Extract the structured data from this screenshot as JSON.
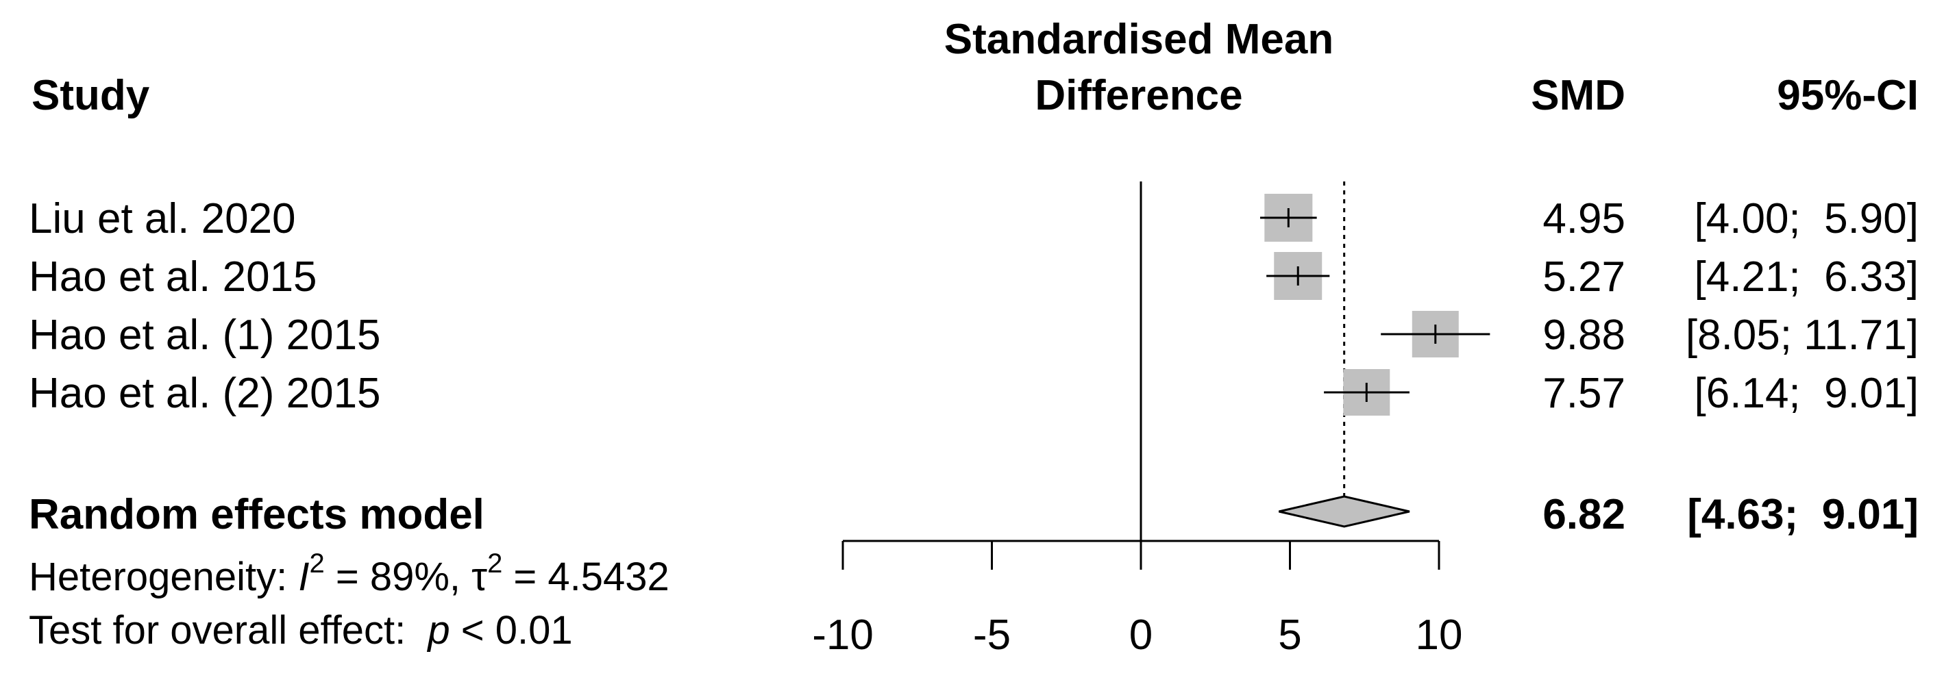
{
  "chart_data": {
    "type": "forest",
    "headers": {
      "study": "Study",
      "effect_line1": "Standardised Mean",
      "effect_line2": "Difference",
      "smd": "SMD",
      "ci": "95%-CI"
    },
    "studies": [
      {
        "label": "Liu et al. 2020",
        "smd": 4.95,
        "lower": 4.0,
        "upper": 5.9,
        "smd_text": "4.95",
        "ci_text": "[4.00;  5.90]"
      },
      {
        "label": "Hao et al. 2015",
        "smd": 5.27,
        "lower": 4.21,
        "upper": 6.33,
        "smd_text": "5.27",
        "ci_text": "[4.21;  6.33]"
      },
      {
        "label": "Hao et al. (1) 2015",
        "smd": 9.88,
        "lower": 8.05,
        "upper": 11.71,
        "smd_text": "9.88",
        "ci_text": "[8.05; 11.71]"
      },
      {
        "label": "Hao et al. (2) 2015",
        "smd": 7.57,
        "lower": 6.14,
        "upper": 9.01,
        "smd_text": "7.57",
        "ci_text": "[6.14;  9.01]"
      }
    ],
    "pooled": {
      "label": "Random effects model",
      "smd": 6.82,
      "lower": 4.63,
      "upper": 9.01,
      "smd_text": "6.82",
      "ci_text": "[4.63;  9.01]"
    },
    "heterogeneity": {
      "prefix": "Heterogeneity: ",
      "i2_symbol": "I",
      "sup": "2",
      "i2_value": " = 89%, ",
      "tau_symbol": "τ",
      "tau_value": " = 4.5432"
    },
    "overall_test": {
      "prefix": "Test for overall effect:  ",
      "p_symbol": "p",
      "value": " < 0.01"
    },
    "x_axis": {
      "min": -10,
      "max": 10,
      "ticks": [
        -10,
        -5,
        0,
        5,
        10
      ],
      "tick_labels": [
        "-10",
        "-5",
        "0",
        "5",
        "10"
      ]
    },
    "colors": {
      "square": "#c0c0c0",
      "diamond": "#c0c0c0",
      "line": "#000000"
    }
  }
}
